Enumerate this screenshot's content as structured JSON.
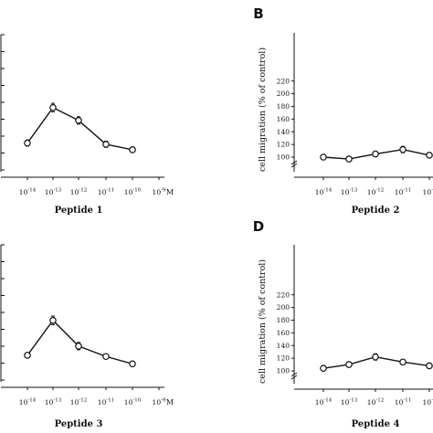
{
  "chart_data": [
    {
      "type": "line",
      "panel": "A",
      "letter": "",
      "title": "Peptide 1",
      "ylabel": "",
      "x_tick_labels": [
        "10-14",
        "10-13",
        "10-12",
        "10-11",
        "10-10",
        "10-9"
      ],
      "x_unit": "M",
      "x": [
        "10-14",
        "10-13",
        "10-12",
        "10-11",
        "10-10"
      ],
      "y": [
        123,
        181,
        160,
        121,
        112
      ],
      "err": [
        5,
        7,
        6,
        5,
        4
      ],
      "ylim": [
        0,
        220
      ]
    },
    {
      "type": "line",
      "panel": "B",
      "letter": "B",
      "title": "Peptide 2",
      "ylabel": "cell migration (% of control)",
      "y_tick_labels": [
        "100",
        "120",
        "140",
        "160",
        "180",
        "200",
        "220"
      ],
      "x_tick_labels": [
        "10-14",
        "10-13",
        "10-12",
        "10-11",
        "10-1"
      ],
      "x": [
        "10-14",
        "10-13",
        "10-12",
        "10-11",
        "10-10"
      ],
      "y": [
        100,
        97,
        105,
        112,
        103
      ],
      "err": [
        4,
        4,
        4,
        5,
        4
      ],
      "ylim": [
        0,
        220
      ]
    },
    {
      "type": "line",
      "panel": "C",
      "letter": "",
      "title": "Peptide 3",
      "ylabel": "",
      "x_tick_labels": [
        "10-14",
        "10-13",
        "10-12",
        "10-11",
        "10-10",
        "10-9"
      ],
      "x_unit": "M",
      "x": [
        "10-14",
        "10-13",
        "10-12",
        "10-11",
        "10-10"
      ],
      "y": [
        127,
        184,
        142,
        125,
        113
      ],
      "err": [
        4,
        7,
        6,
        4,
        4
      ],
      "ylim": [
        0,
        220
      ]
    },
    {
      "type": "line",
      "panel": "D",
      "letter": "D",
      "title": "Peptide 4",
      "ylabel": "cell migration (% of control)",
      "y_tick_labels": [
        "100",
        "120",
        "140",
        "160",
        "180",
        "200",
        "220"
      ],
      "x_tick_labels": [
        "10-14",
        "10-13",
        "10-12",
        "10-11",
        "10-1"
      ],
      "x": [
        "10-14",
        "10-13",
        "10-12",
        "10-11",
        "10-10"
      ],
      "y": [
        104,
        110,
        122,
        114,
        108
      ],
      "err": [
        4,
        4,
        5,
        4,
        4
      ],
      "ylim": [
        0,
        220
      ]
    }
  ]
}
